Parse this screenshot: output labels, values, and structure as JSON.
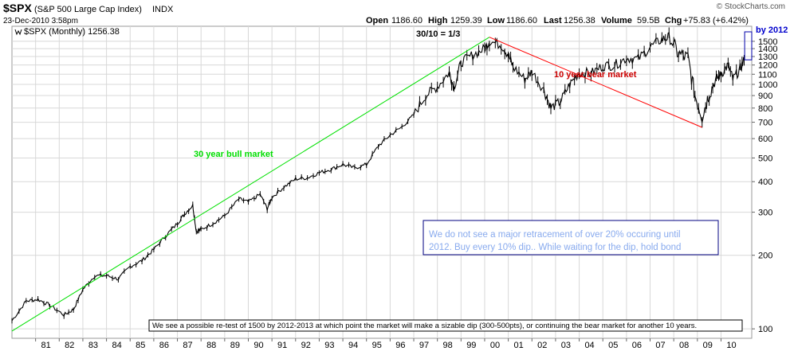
{
  "header": {
    "symbol": "$SPX",
    "name": "(S&P 500 Large Cap Index)",
    "exchange": "INDX",
    "date": "23-Dec-2010 3:58pm",
    "watermark": "© StockCharts.com",
    "legend_label": "$SPX (Monthly) 1256.38",
    "quote": {
      "open_label": "Open",
      "open": "1186.60",
      "high_label": "High",
      "high": "1259.39",
      "low_label": "Low",
      "low": "1186.60",
      "last_label": "Last",
      "last": "1256.38",
      "volume_label": "Volume",
      "volume": "59.5B",
      "chg_label": "Chg",
      "chg": "+75.83 (+6.42%)"
    }
  },
  "chart_data": {
    "type": "line",
    "title": "$SPX (S&P 500 Large Cap Index) INDX",
    "xlabel": "",
    "ylabel": "",
    "y_scale": "log",
    "ylim": [
      95,
      1640
    ],
    "xlim": [
      1980.0,
      2011.3
    ],
    "y_ticks": [
      100,
      200,
      300,
      400,
      500,
      600,
      700,
      800,
      900,
      1000,
      1100,
      1200,
      1300,
      1400,
      1500
    ],
    "x_ticks": [
      {
        "label": "81",
        "x": 1981
      },
      {
        "label": "82",
        "x": 1982
      },
      {
        "label": "83",
        "x": 1983
      },
      {
        "label": "84",
        "x": 1984
      },
      {
        "label": "85",
        "x": 1985
      },
      {
        "label": "86",
        "x": 1986
      },
      {
        "label": "87",
        "x": 1987
      },
      {
        "label": "88",
        "x": 1988
      },
      {
        "label": "89",
        "x": 1989
      },
      {
        "label": "90",
        "x": 1990
      },
      {
        "label": "91",
        "x": 1991
      },
      {
        "label": "92",
        "x": 1992
      },
      {
        "label": "93",
        "x": 1993
      },
      {
        "label": "94",
        "x": 1994
      },
      {
        "label": "95",
        "x": 1995
      },
      {
        "label": "96",
        "x": 1996
      },
      {
        "label": "97",
        "x": 1997
      },
      {
        "label": "98",
        "x": 1998
      },
      {
        "label": "99",
        "x": 1999
      },
      {
        "label": "00",
        "x": 2000
      },
      {
        "label": "01",
        "x": 2001
      },
      {
        "label": "02",
        "x": 2002
      },
      {
        "label": "03",
        "x": 2003
      },
      {
        "label": "04",
        "x": 2004
      },
      {
        "label": "05",
        "x": 2005
      },
      {
        "label": "06",
        "x": 2006
      },
      {
        "label": "07",
        "x": 2007
      },
      {
        "label": "08",
        "x": 2008
      },
      {
        "label": "09",
        "x": 2009
      },
      {
        "label": "10",
        "x": 2010
      }
    ],
    "grid": true,
    "series": [
      {
        "name": "$SPX (Monthly)",
        "color": "#000000",
        "x": [
          1980.0,
          1980.6,
          1981.1,
          1981.6,
          1982.2,
          1982.6,
          1983.0,
          1983.5,
          1984.0,
          1984.5,
          1985.0,
          1985.5,
          1986.0,
          1986.5,
          1987.0,
          1987.3,
          1987.65,
          1987.8,
          1988.0,
          1988.5,
          1989.0,
          1989.6,
          1990.0,
          1990.5,
          1990.8,
          1991.0,
          1991.5,
          1992.0,
          1992.5,
          1993.0,
          1993.5,
          1994.0,
          1994.5,
          1995.0,
          1995.5,
          1996.0,
          1996.5,
          1997.0,
          1997.5,
          1998.0,
          1998.5,
          1998.7,
          1999.0,
          1999.5,
          2000.0,
          2000.2,
          2000.7,
          2001.0,
          2001.2,
          2001.7,
          2002.0,
          2002.5,
          2002.8,
          2003.2,
          2003.6,
          2004.0,
          2004.5,
          2005.0,
          2005.5,
          2006.0,
          2006.5,
          2007.0,
          2007.5,
          2007.8,
          2008.2,
          2008.6,
          2008.9,
          2009.2,
          2009.5,
          2009.8,
          2010.0,
          2010.3,
          2010.5,
          2010.8,
          2010.98
        ],
        "values": [
          108,
          130,
          132,
          125,
          114,
          120,
          145,
          165,
          165,
          160,
          180,
          190,
          211,
          240,
          270,
          295,
          320,
          250,
          255,
          270,
          290,
          340,
          330,
          355,
          310,
          345,
          380,
          410,
          415,
          435,
          450,
          470,
          455,
          470,
          560,
          620,
          670,
          750,
          900,
          980,
          1120,
          970,
          1230,
          1320,
          1400,
          1500,
          1450,
          1320,
          1180,
          1050,
          1130,
          950,
          800,
          850,
          1000,
          1120,
          1110,
          1190,
          1200,
          1280,
          1270,
          1420,
          1530,
          1560,
          1330,
          1280,
          900,
          740,
          920,
          1050,
          1100,
          1200,
          1050,
          1150,
          1256
        ]
      },
      {
        "name": "30 year bull market",
        "color": "#00e000",
        "x": [
          1980.0,
          2000.2
        ],
        "values": [
          98,
          1560
        ]
      },
      {
        "name": "10 year bear market",
        "color": "#ff0000",
        "x": [
          2000.2,
          2009.2
        ],
        "values": [
          1560,
          667
        ]
      }
    ],
    "annotations": [
      {
        "text": "30/10 = 1/3",
        "color": "#000000"
      },
      {
        "text": "30 year bull market",
        "color": "#00dd00"
      },
      {
        "text": "10 year bear market",
        "color": "#cc0000"
      },
      {
        "text": "by 2012",
        "color": "#0000cc"
      },
      {
        "text": "We do not see a major retracement of over 20% occuring until",
        "color": "#88aaee"
      },
      {
        "text": "2012. Buy every 10% dip.. While waiting for the dip, hold bond",
        "color": "#88aaee"
      },
      {
        "text": "We see a possible re-test of 1500 by 2012-2013 at which point the market will make a sizable dip (300-500pts), or continuing the bear market for another 10 years.",
        "color": "#000000"
      }
    ],
    "target_box": {
      "x": [
        2011.0,
        2011.3
      ],
      "values": [
        1260,
        1640
      ],
      "color": "#0000aa"
    }
  }
}
